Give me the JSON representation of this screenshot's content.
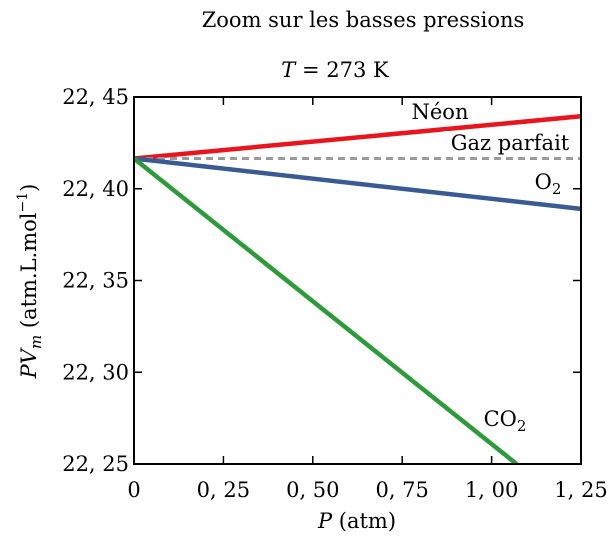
{
  "chart_data": {
    "type": "line",
    "title": "Zoom sur les basses pressions",
    "subtitle_var": "T",
    "subtitle_value": " = 273 K",
    "xlabel_var": "P",
    "xlabel_unit": " (atm)",
    "ylabel_var": "PV",
    "ylabel_sub": "m",
    "ylabel_unit": " (atm.L.mol",
    "ylabel_exp": "−1",
    "ylabel_close": ")",
    "xlim": [
      0,
      1.25
    ],
    "ylim": [
      22.25,
      22.45
    ],
    "x_ticks": [
      0,
      0.25,
      0.5,
      0.75,
      1.0,
      1.25
    ],
    "x_tick_labels": [
      "0",
      "0, 25",
      "0, 50",
      "0, 75",
      "1, 00",
      "1, 25"
    ],
    "y_ticks": [
      22.25,
      22.3,
      22.35,
      22.4,
      22.45
    ],
    "y_tick_labels": [
      "22, 25",
      "22, 30",
      "22, 35",
      "22, 40",
      "22, 45"
    ],
    "grid": false,
    "series": [
      {
        "name": "Néon",
        "color": "#e8141e",
        "style": "solid",
        "x": [
          0,
          1.25
        ],
        "y": [
          22.4165,
          22.4395
        ]
      },
      {
        "name": "Gaz parfait",
        "color": "#9a9a9a",
        "style": "dashed",
        "x": [
          0,
          1.25
        ],
        "y": [
          22.4165,
          22.4165
        ]
      },
      {
        "name": "O",
        "name_sub": "2",
        "color": "#3a5a94",
        "style": "solid",
        "x": [
          0,
          1.25
        ],
        "y": [
          22.4165,
          22.389
        ]
      },
      {
        "name": "CO",
        "name_sub": "2",
        "color": "#2e9a3c",
        "style": "solid",
        "x": [
          0,
          1.07
        ],
        "y": [
          22.4165,
          22.25
        ]
      }
    ]
  }
}
